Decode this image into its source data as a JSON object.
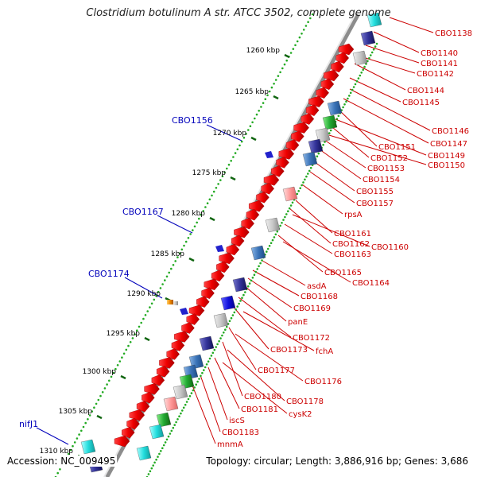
{
  "title": "Clostridium botulinum A str. ATCC 3502, complete genome",
  "footer": {
    "accession": "Accession: NC_009495",
    "summary": "Topology: circular; Length: 3,886,916 bp; Genes: 3,686"
  },
  "scale_labels": [
    "1260 kbp",
    "1265 kbp",
    "1270 kbp",
    "1275 kbp",
    "1280 kbp",
    "1285 kbp",
    "1290 kbp",
    "1295 kbp",
    "1300 kbp",
    "1305 kbp",
    "1310 kbp"
  ],
  "left_labels": [
    "CBO1156",
    "CBO1167",
    "CBO1174",
    "nifJ1"
  ],
  "right_labels": [
    "CBO1138",
    "CBO1140",
    "CBO1141",
    "CBO1142",
    "CBO1144",
    "CBO1145",
    "CBO1146",
    "CBO1147",
    "CBO1151",
    "CBO1149",
    "CBO1152",
    "CBO1150",
    "CBO1153",
    "CBO1154",
    "CBO1155",
    "CBO1157",
    "rpsA",
    "CBO1161",
    "CBO1162",
    "CBO1160",
    "CBO1163",
    "CBO1165",
    "CBO1164",
    "asdA",
    "CBO1168",
    "CBO1169",
    "panE",
    "CBO1172",
    "CBO1173",
    "fchA",
    "CBO1177",
    "CBO1176",
    "CBO1180",
    "CBO1178",
    "CBO1181",
    "cysK2",
    "iscS",
    "CBO1183",
    "mnmA"
  ],
  "colors": {
    "gene_forward": "#ee0000",
    "gene_feature_a": "#3b74b8",
    "gene_feature_b": "#2222cc",
    "gene_feature_c": "#22aa33",
    "gene_feature_d": "#ee8800",
    "gene_feature_e": "#22dddd",
    "left_label": "#0000bb",
    "right_label": "#cc0000",
    "scale_dots": "#22aa22"
  }
}
